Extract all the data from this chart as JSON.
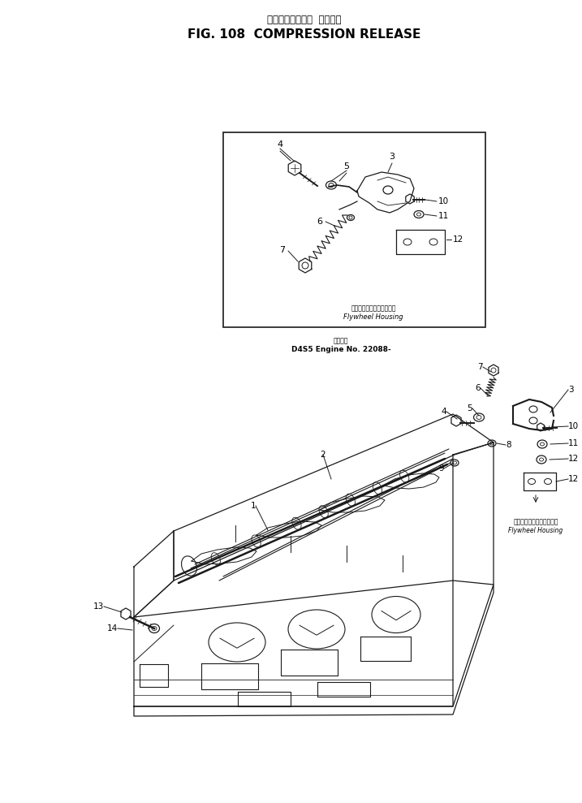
{
  "title_japanese": "コンプレッション  リリーズ",
  "title_english": "FIG. 108  COMPRESSION RELEASE",
  "bg_color": "#ffffff",
  "line_color": "#000000",
  "inset_label_jp": "フライホイールハウジング",
  "inset_label_en": "Flywheel Housing",
  "main_label_jp": "フライホイールハウジング",
  "main_label_en": "Flywheel Housing",
  "engine_note_jp": "適用影号",
  "engine_note_en": "D4S5 Engine No. 22088-"
}
